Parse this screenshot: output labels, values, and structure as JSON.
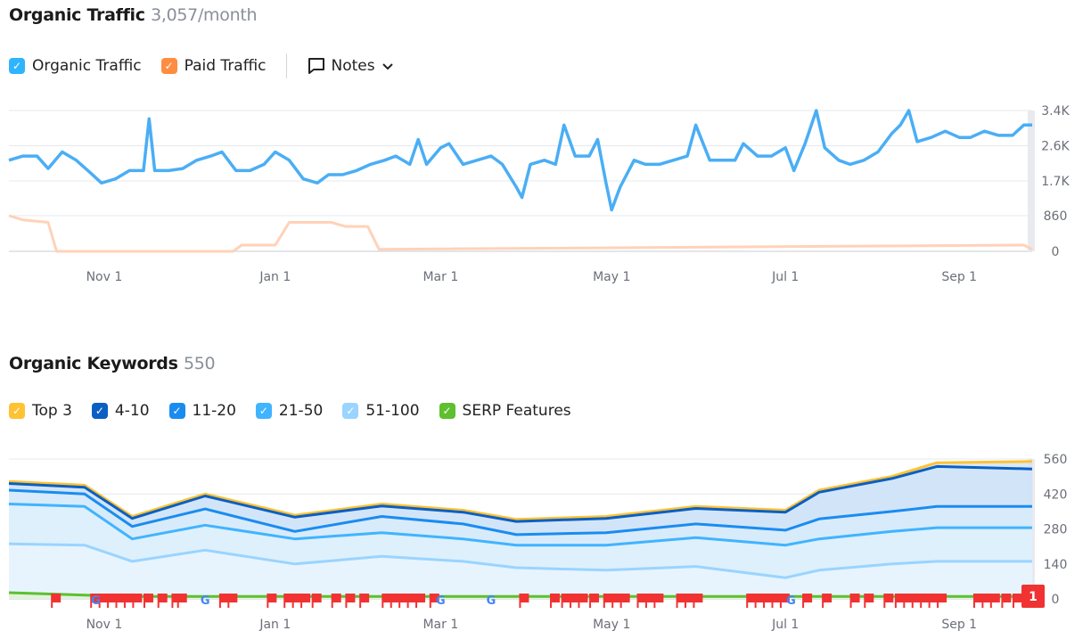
{
  "traffic": {
    "title": "Organic Traffic",
    "value": "3,057/month",
    "legend": [
      {
        "label": "Organic Traffic",
        "color": "#2fb4ff"
      },
      {
        "label": "Paid Traffic",
        "color": "#ff8c40"
      }
    ],
    "notes_label": "Notes"
  },
  "keywords": {
    "title": "Organic Keywords",
    "value": "550",
    "legend": [
      {
        "label": "Top 3",
        "color": "#ffc233"
      },
      {
        "label": "4-10",
        "color": "#0a5fc4"
      },
      {
        "label": "11-20",
        "color": "#1a8cf0"
      },
      {
        "label": "21-50",
        "color": "#40b4ff"
      },
      {
        "label": "51-100",
        "color": "#9ad4ff"
      },
      {
        "label": "SERP Features",
        "color": "#5ebf2f"
      }
    ],
    "flag_badge": "1"
  },
  "chart_data": [
    {
      "type": "line",
      "title": "Organic Traffic",
      "x_unit": "days since start",
      "xlim": [
        0,
        365
      ],
      "ylim": [
        0,
        3400
      ],
      "x_ticks": [
        {
          "label": "Nov 1",
          "day": 34
        },
        {
          "label": "Jan 1",
          "day": 95
        },
        {
          "label": "Mar 1",
          "day": 154
        },
        {
          "label": "May 1",
          "day": 215
        },
        {
          "label": "Jul 1",
          "day": 277
        },
        {
          "label": "Sep 1",
          "day": 339
        }
      ],
      "y_ticks": [
        {
          "label": "3.4K",
          "v": 3400
        },
        {
          "label": "2.6K",
          "v": 2550
        },
        {
          "label": "1.7K",
          "v": 1700
        },
        {
          "label": "860",
          "v": 860
        },
        {
          "label": "0",
          "v": 0
        }
      ],
      "series": [
        {
          "name": "Organic Traffic",
          "color": "#4aaef5",
          "points": [
            [
              0,
              2200
            ],
            [
              5,
              2300
            ],
            [
              10,
              2300
            ],
            [
              14,
              2000
            ],
            [
              19,
              2400
            ],
            [
              24,
              2200
            ],
            [
              29,
              1900
            ],
            [
              33,
              1650
            ],
            [
              38,
              1750
            ],
            [
              43,
              1950
            ],
            [
              48,
              1950
            ],
            [
              50,
              3200
            ],
            [
              52,
              1950
            ],
            [
              57,
              1950
            ],
            [
              62,
              2000
            ],
            [
              67,
              2200
            ],
            [
              72,
              2300
            ],
            [
              76,
              2400
            ],
            [
              81,
              1950
            ],
            [
              86,
              1950
            ],
            [
              91,
              2100
            ],
            [
              95,
              2400
            ],
            [
              100,
              2200
            ],
            [
              105,
              1750
            ],
            [
              110,
              1650
            ],
            [
              114,
              1850
            ],
            [
              119,
              1850
            ],
            [
              124,
              1950
            ],
            [
              129,
              2100
            ],
            [
              134,
              2200
            ],
            [
              138,
              2300
            ],
            [
              143,
              2100
            ],
            [
              146,
              2700
            ],
            [
              149,
              2100
            ],
            [
              154,
              2500
            ],
            [
              157,
              2600
            ],
            [
              162,
              2100
            ],
            [
              167,
              2200
            ],
            [
              172,
              2300
            ],
            [
              176,
              2100
            ],
            [
              181,
              1550
            ],
            [
              183,
              1300
            ],
            [
              186,
              2100
            ],
            [
              191,
              2200
            ],
            [
              195,
              2100
            ],
            [
              198,
              3050
            ],
            [
              202,
              2300
            ],
            [
              207,
              2300
            ],
            [
              210,
              2700
            ],
            [
              213,
              1650
            ],
            [
              215,
              1000
            ],
            [
              218,
              1550
            ],
            [
              223,
              2200
            ],
            [
              227,
              2100
            ],
            [
              232,
              2100
            ],
            [
              237,
              2200
            ],
            [
              242,
              2300
            ],
            [
              245,
              3050
            ],
            [
              250,
              2200
            ],
            [
              254,
              2200
            ],
            [
              259,
              2200
            ],
            [
              262,
              2600
            ],
            [
              267,
              2300
            ],
            [
              272,
              2300
            ],
            [
              277,
              2500
            ],
            [
              280,
              1950
            ],
            [
              284,
              2600
            ],
            [
              288,
              3400
            ],
            [
              291,
              2500
            ],
            [
              296,
              2200
            ],
            [
              300,
              2100
            ],
            [
              305,
              2200
            ],
            [
              310,
              2400
            ],
            [
              315,
              2850
            ],
            [
              318,
              3050
            ],
            [
              321,
              3400
            ],
            [
              324,
              2650
            ],
            [
              329,
              2750
            ],
            [
              334,
              2900
            ],
            [
              339,
              2750
            ],
            [
              343,
              2750
            ],
            [
              348,
              2900
            ],
            [
              353,
              2800
            ],
            [
              358,
              2800
            ],
            [
              362,
              3050
            ],
            [
              365,
              3050
            ]
          ]
        },
        {
          "name": "Paid Traffic",
          "color": "#ffd2b8",
          "points": [
            [
              0,
              860
            ],
            [
              5,
              760
            ],
            [
              14,
              700
            ],
            [
              17,
              0
            ],
            [
              80,
              0
            ],
            [
              83,
              150
            ],
            [
              95,
              150
            ],
            [
              100,
              700
            ],
            [
              115,
              700
            ],
            [
              120,
              600
            ],
            [
              128,
              600
            ],
            [
              132,
              50
            ],
            [
              365,
              50
            ],
            [
              362,
              150
            ]
          ]
        }
      ]
    },
    {
      "type": "area",
      "title": "Organic Keywords",
      "xlim": [
        0,
        365
      ],
      "ylim": [
        0,
        560
      ],
      "x_ticks": [
        {
          "label": "Nov 1",
          "day": 34
        },
        {
          "label": "Jan 1",
          "day": 95
        },
        {
          "label": "Mar 1",
          "day": 154
        },
        {
          "label": "May 1",
          "day": 215
        },
        {
          "label": "Jul 1",
          "day": 277
        },
        {
          "label": "Sep 1",
          "day": 339
        }
      ],
      "y_ticks": [
        {
          "label": "560",
          "v": 560
        },
        {
          "label": "420",
          "v": 420
        },
        {
          "label": "280",
          "v": 280
        },
        {
          "label": "140",
          "v": 140
        },
        {
          "label": "0",
          "v": 0
        }
      ],
      "days": [
        0,
        27,
        44,
        70,
        102,
        133,
        162,
        181,
        213,
        245,
        277,
        289,
        315,
        331,
        365
      ],
      "series": [
        {
          "name": "Top 3 (total)",
          "color": "#ffc233",
          "fill": "#cfe3f7",
          "values": [
            470,
            455,
            330,
            420,
            335,
            380,
            355,
            318,
            330,
            370,
            355,
            435,
            490,
            545,
            550
          ]
        },
        {
          "name": "4-10",
          "color": "#0a5fc4",
          "fill": "#cfe3f7",
          "values": [
            462,
            447,
            322,
            412,
            327,
            372,
            347,
            310,
            322,
            362,
            347,
            427,
            482,
            530,
            520
          ]
        },
        {
          "name": "11-20",
          "color": "#1a8cf0",
          "fill": "#d9ecfb",
          "values": [
            435,
            420,
            290,
            360,
            270,
            330,
            300,
            257,
            265,
            300,
            275,
            320,
            350,
            370,
            370
          ]
        },
        {
          "name": "21-50",
          "color": "#40b4ff",
          "fill": "#e0f1fd",
          "values": [
            380,
            370,
            240,
            295,
            240,
            265,
            240,
            215,
            215,
            245,
            215,
            240,
            270,
            285,
            285
          ]
        },
        {
          "name": "51-100",
          "color": "#9ad4ff",
          "fill": "#e8f5fe",
          "values": [
            220,
            215,
            150,
            195,
            140,
            170,
            150,
            125,
            115,
            130,
            85,
            115,
            140,
            150,
            150
          ]
        },
        {
          "name": "SERP Features",
          "color": "#5ebf2f",
          "fill": "#dff2d3",
          "values": [
            25,
            15,
            10,
            10,
            10,
            10,
            10,
            10,
            10,
            10,
            10,
            10,
            10,
            10,
            10
          ]
        }
      ],
      "note_flag_days": [
        15,
        29,
        32,
        35,
        38,
        41,
        44,
        48,
        53,
        58,
        60,
        75,
        78,
        92,
        98,
        101,
        104,
        108,
        115,
        120,
        125,
        133,
        136,
        139,
        142,
        145,
        150,
        182,
        193,
        197,
        200,
        203,
        207,
        212,
        215,
        218,
        224,
        227,
        230,
        238,
        241,
        244,
        263,
        266,
        269,
        272,
        275,
        283,
        290,
        300,
        305,
        312,
        316,
        319,
        322,
        325,
        328,
        331,
        344,
        347,
        350,
        354,
        358
      ],
      "google_update_days": [
        31,
        70,
        154,
        172,
        279
      ]
    }
  ]
}
